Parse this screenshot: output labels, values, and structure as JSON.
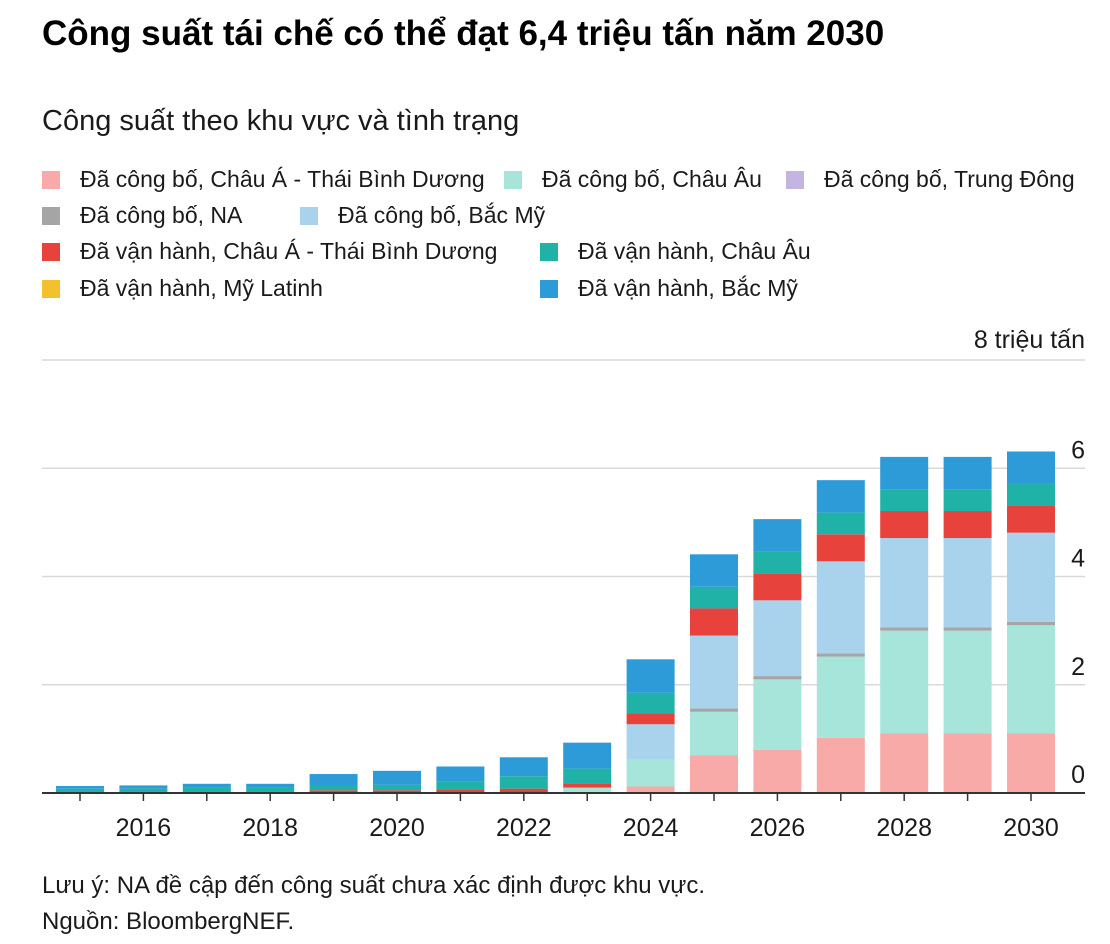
{
  "title": "Công suất tái chế có thể đạt 6,4 triệu tấn năm 2030",
  "subtitle": "Công suất theo khu vực và tình trạng",
  "note": "Lưu ý: NA đề cập đến công suất chưa xác định được khu vực.",
  "source": "Nguồn: BloombergNEF.",
  "chart_data": {
    "type": "bar",
    "stacked": true,
    "unit_label": "8 triệu tấn",
    "ylim": [
      0,
      8
    ],
    "yticks": [
      0,
      2,
      4,
      6,
      8
    ],
    "ytick_labels": [
      "0",
      "2",
      "4",
      "6",
      ""
    ],
    "x": [
      2015,
      2016,
      2017,
      2018,
      2019,
      2020,
      2021,
      2022,
      2023,
      2024,
      2025,
      2026,
      2027,
      2028,
      2029,
      2030
    ],
    "xtick_labels": [
      "2016",
      "2018",
      "2020",
      "2022",
      "2024",
      "2026",
      "2028",
      "2030"
    ],
    "grid": true,
    "legend_position": "top",
    "series": [
      {
        "name": "Đã công bố, Châu Á - Thái Bình Dương",
        "color": "#f7aaa8",
        "values": [
          0,
          0,
          0,
          0,
          0,
          0,
          0,
          0,
          0,
          0.12,
          0.7,
          0.8,
          1.02,
          1.1,
          1.1,
          1.1
        ]
      },
      {
        "name": "Đã công bố, Châu Âu",
        "color": "#a7e4da",
        "values": [
          0,
          0,
          0,
          0,
          0,
          0,
          0,
          0,
          0.1,
          0.5,
          0.8,
          1.3,
          1.5,
          1.9,
          1.9,
          2.0
        ]
      },
      {
        "name": "Đã công bố, Trung Đông",
        "color": "#c4b5e0",
        "values": [
          0,
          0,
          0,
          0,
          0,
          0,
          0,
          0,
          0,
          0,
          0,
          0,
          0,
          0,
          0,
          0
        ]
      },
      {
        "name": "Đã công bố, NA",
        "color": "#a5a5a5",
        "values": [
          0,
          0,
          0,
          0,
          0,
          0,
          0,
          0,
          0,
          0,
          0.06,
          0.06,
          0.06,
          0.06,
          0.06,
          0.06
        ]
      },
      {
        "name": "Đã công bố, Bắc Mỹ",
        "color": "#a9d2ec",
        "values": [
          0,
          0,
          0,
          0,
          0,
          0,
          0,
          0,
          0,
          0.65,
          1.35,
          1.4,
          1.7,
          1.65,
          1.65,
          1.65
        ]
      },
      {
        "name": "Đã vận hành, Châu Á - Thái Bình Dương",
        "color": "#e8423d",
        "values": [
          0.03,
          0.03,
          0.03,
          0.03,
          0.05,
          0.05,
          0.07,
          0.08,
          0.08,
          0.2,
          0.5,
          0.5,
          0.5,
          0.5,
          0.5,
          0.5
        ]
      },
      {
        "name": "Đã vận hành, Châu Âu",
        "color": "#20b2a6",
        "values": [
          0.05,
          0.05,
          0.07,
          0.07,
          0.08,
          0.1,
          0.14,
          0.23,
          0.27,
          0.38,
          0.4,
          0.4,
          0.4,
          0.4,
          0.4,
          0.4
        ]
      },
      {
        "name": "Đã vận hành, Mỹ Latinh",
        "color": "#f3c12e",
        "values": [
          0,
          0,
          0,
          0,
          0,
          0,
          0,
          0,
          0,
          0,
          0,
          0,
          0,
          0,
          0,
          0
        ]
      },
      {
        "name": "Đã vận hành, Bắc Mỹ",
        "color": "#2d9bd7",
        "values": [
          0.05,
          0.06,
          0.07,
          0.07,
          0.22,
          0.26,
          0.28,
          0.35,
          0.48,
          0.62,
          0.6,
          0.6,
          0.6,
          0.6,
          0.6,
          0.6
        ]
      }
    ]
  }
}
